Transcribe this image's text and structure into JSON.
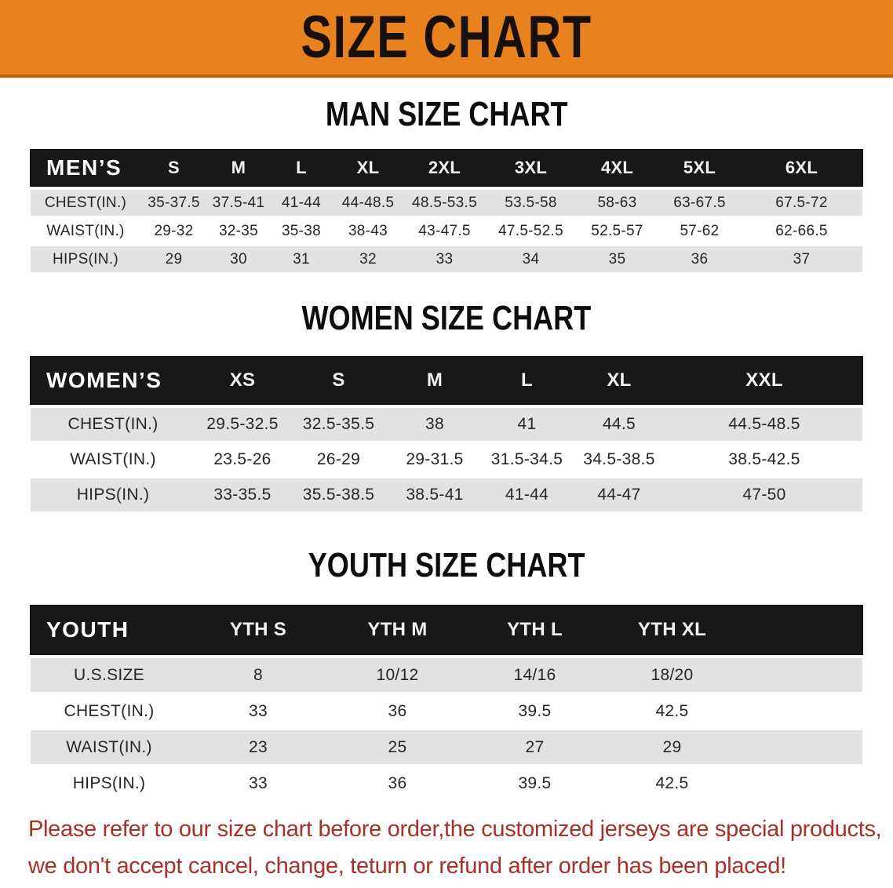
{
  "banner": {
    "title": "SIZE CHART",
    "bg_color": "#e8821e",
    "border_color": "#bf5f10",
    "text_color": "#18100a"
  },
  "sections": [
    {
      "title": "MAN SIZE CHART",
      "table": {
        "header_label": "MEN’S",
        "columns": [
          "S",
          "M",
          "L",
          "XL",
          "2XL",
          "3XL",
          "4XL",
          "5XL",
          "6XL"
        ],
        "rows": [
          {
            "label": "CHEST(IN.)",
            "values": [
              "35-37.5",
              "37.5-41",
              "41-44",
              "44-48.5",
              "48.5-53.5",
              "53.5-58",
              "58-63",
              "63-67.5",
              "67.5-72"
            ]
          },
          {
            "label": "WAIST(IN.)",
            "values": [
              "29-32",
              "32-35",
              "35-38",
              "38-43",
              "43-47.5",
              "47.5-52.5",
              "52.5-57",
              "57-62",
              "62-66.5"
            ]
          },
          {
            "label": "HIPS(IN.)",
            "values": [
              "29",
              "30",
              "31",
              "32",
              "33",
              "34",
              "35",
              "36",
              "37"
            ]
          }
        ]
      }
    },
    {
      "title": "WOMEN SIZE CHART",
      "table": {
        "header_label": "WOMEN’S",
        "columns": [
          "XS",
          "S",
          "M",
          "L",
          "XL",
          "XXL"
        ],
        "rows": [
          {
            "label": "CHEST(IN.)",
            "values": [
              "29.5-32.5",
              "32.5-35.5",
              "38",
              "41",
              "44.5",
              "44.5-48.5"
            ]
          },
          {
            "label": "WAIST(IN.)",
            "values": [
              "23.5-26",
              "26-29",
              "29-31.5",
              "31.5-34.5",
              "34.5-38.5",
              "38.5-42.5"
            ]
          },
          {
            "label": "HIPS(IN.)",
            "values": [
              "33-35.5",
              "35.5-38.5",
              "38.5-41",
              "41-44",
              "44-47",
              "47-50"
            ]
          }
        ]
      }
    },
    {
      "title": "YOUTH SIZE CHART",
      "table": {
        "header_label": "YOUTH",
        "columns": [
          "YTH S",
          "YTH M",
          "YTH L",
          "YTH XL"
        ],
        "rows": [
          {
            "label": "U.S.SIZE",
            "values": [
              "8",
              "10/12",
              "14/16",
              "18/20"
            ]
          },
          {
            "label": "CHEST(IN.)",
            "values": [
              "33",
              "36",
              "39.5",
              "42.5"
            ]
          },
          {
            "label": "WAIST(IN.)",
            "values": [
              "23",
              "25",
              "27",
              "29"
            ]
          },
          {
            "label": "HIPS(IN.)",
            "values": [
              "33",
              "36",
              "39.5",
              "42.5"
            ]
          }
        ]
      }
    }
  ],
  "footer": {
    "line1": "Please refer to our size chart before order,the customized jerseys are special products,",
    "line2": "we don't accept cancel, change, teturn or refund after order has been placed!",
    "text_color": "#a93028"
  },
  "table_colors": {
    "header_bg": "#181818",
    "header_text": "#f2f2f2",
    "stripe_row_bg": "#e2e2e2",
    "plain_row_bg": "#ffffff",
    "cell_text": "#262626"
  }
}
